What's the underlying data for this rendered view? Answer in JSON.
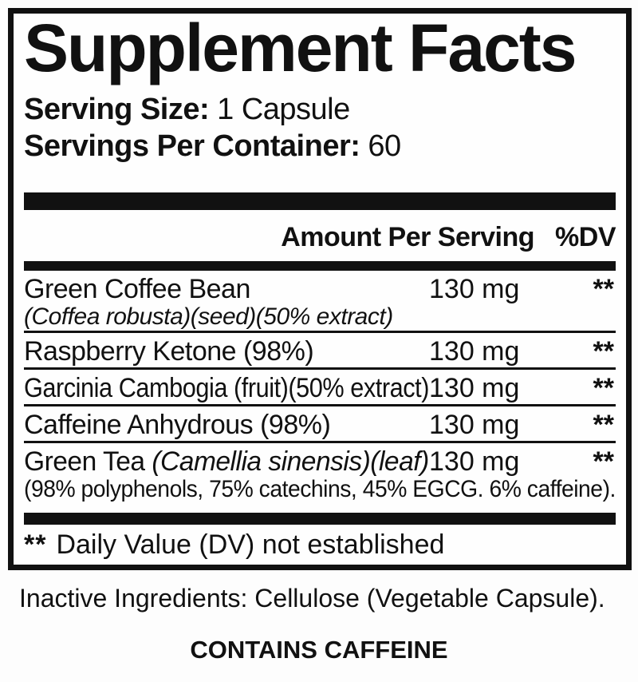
{
  "colors": {
    "ink": "#111111",
    "background": "#fdfdfd"
  },
  "label": {
    "title": "Supplement Facts",
    "serving_size": {
      "label": "Serving Size:",
      "value": "1 Capsule"
    },
    "servings_per_container": {
      "label": "Servings Per Container:",
      "value": "60"
    },
    "columns": {
      "amount": "Amount Per Serving",
      "dv": "%DV"
    },
    "rows": [
      {
        "name_parts": [
          {
            "text": "Green Coffee Bean",
            "italic": false
          }
        ],
        "amount": "130 mg",
        "dv": "**",
        "sub": {
          "text": "(Coffea robusta)(seed)(50% extract)",
          "italic": true
        }
      },
      {
        "name_parts": [
          {
            "text": "Raspberry Ketone (98%)",
            "italic": false
          }
        ],
        "amount": "130 mg",
        "dv": "**"
      },
      {
        "name_parts": [
          {
            "text": "Garcinia Cambogia (fruit)(50% extract)",
            "italic": false
          }
        ],
        "amount": "130 mg",
        "dv": "**"
      },
      {
        "name_parts": [
          {
            "text": "Caffeine Anhydrous (98%)",
            "italic": false
          }
        ],
        "amount": "130 mg",
        "dv": "**"
      },
      {
        "name_parts": [
          {
            "text": "Green Tea ",
            "italic": false
          },
          {
            "text": "(Camellia sinensis)(leaf)",
            "italic": true
          }
        ],
        "amount": "130 mg",
        "dv": "**",
        "sub": {
          "text": "(98% polyphenols, 75% catechins, 45% EGCG. 6% caffeine).",
          "italic": false
        }
      }
    ],
    "footnote": {
      "marker": "**",
      "text": "Daily Value (DV) not established"
    }
  },
  "below_label": {
    "inactive_ingredients": "Inactive Ingredients: Cellulose (Vegetable Capsule).",
    "contains_statement": "CONTAINS CAFFEINE"
  }
}
